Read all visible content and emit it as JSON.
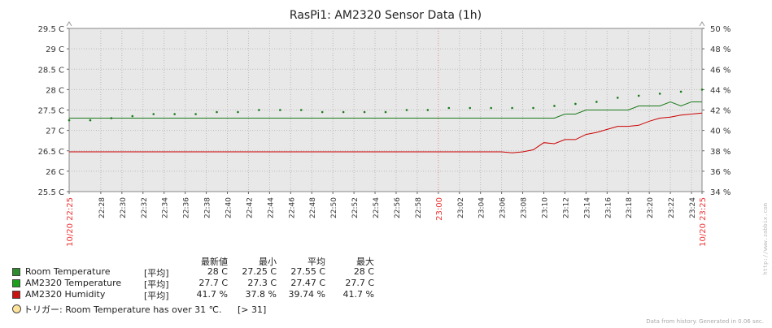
{
  "chart_data": {
    "type": "line",
    "title": "RasPi1: AM2320 Sensor Data (1h)",
    "left_axis": {
      "ylim": [
        25.5,
        29.5
      ],
      "ticks": [
        "25.5 C",
        "26 C",
        "26.5 C",
        "27 C",
        "27.5 C",
        "28 C",
        "28.5 C",
        "29 C",
        "29.5 C"
      ]
    },
    "right_axis": {
      "ylim": [
        34,
        50
      ],
      "ticks": [
        "34 %",
        "36 %",
        "38 %",
        "40 %",
        "42 %",
        "44 %",
        "46 %",
        "48 %",
        "50 %"
      ]
    },
    "x_labels": [
      "10/20 22:25",
      "22:28",
      "22:30",
      "22:32",
      "22:34",
      "22:36",
      "22:38",
      "22:40",
      "22:42",
      "22:44",
      "22:46",
      "22:48",
      "22:50",
      "22:52",
      "22:54",
      "22:56",
      "22:58",
      "23:00",
      "23:02",
      "23:04",
      "23:06",
      "23:08",
      "23:10",
      "23:12",
      "23:14",
      "23:16",
      "23:18",
      "23:20",
      "23:22",
      "23:24",
      "10/20 23:25"
    ],
    "grid": true,
    "series": [
      {
        "name": "Room Temperature",
        "color": "#1a7a1a",
        "style": "dotted",
        "axis": "left",
        "x": [
          "22:25",
          "22:27",
          "22:29",
          "22:31",
          "22:33",
          "22:35",
          "22:37",
          "22:39",
          "22:41",
          "22:43",
          "22:45",
          "22:47",
          "22:49",
          "22:51",
          "22:53",
          "22:55",
          "22:57",
          "22:59",
          "23:01",
          "23:03",
          "23:05",
          "23:07",
          "23:09",
          "23:11",
          "23:13",
          "23:15",
          "23:17",
          "23:19",
          "23:21",
          "23:23",
          "23:25"
        ],
        "values": [
          27.25,
          27.25,
          27.3,
          27.35,
          27.4,
          27.4,
          27.4,
          27.45,
          27.45,
          27.5,
          27.5,
          27.5,
          27.45,
          27.45,
          27.45,
          27.45,
          27.5,
          27.5,
          27.55,
          27.55,
          27.55,
          27.55,
          27.55,
          27.6,
          27.65,
          27.7,
          27.8,
          27.85,
          27.9,
          27.95,
          28.0
        ]
      },
      {
        "name": "AM2320 Temperature",
        "color": "#1a7a1a",
        "style": "line",
        "axis": "left",
        "x": [
          "22:25",
          "23:11",
          "23:12",
          "23:13",
          "23:14",
          "23:15",
          "23:16",
          "23:17",
          "23:18",
          "23:19",
          "23:20",
          "23:21",
          "23:22",
          "23:23",
          "23:24",
          "23:25"
        ],
        "values": [
          27.3,
          27.3,
          27.4,
          27.4,
          27.5,
          27.5,
          27.5,
          27.5,
          27.5,
          27.6,
          27.6,
          27.6,
          27.7,
          27.6,
          27.7,
          27.7
        ]
      },
      {
        "name": "AM2320 Humidity",
        "color": "#cc0000",
        "style": "line",
        "axis": "right",
        "x": [
          "22:25",
          "23:06",
          "23:07",
          "23:08",
          "23:09",
          "23:10",
          "23:11",
          "23:12",
          "23:13",
          "23:14",
          "23:15",
          "23:16",
          "23:17",
          "23:18",
          "23:19",
          "23:20",
          "23:21",
          "23:22",
          "23:23",
          "23:24",
          "23:25"
        ],
        "values": [
          37.9,
          37.9,
          37.8,
          37.9,
          38.1,
          38.8,
          38.7,
          39.1,
          39.1,
          39.6,
          39.8,
          40.1,
          40.4,
          40.4,
          40.5,
          40.9,
          41.2,
          41.3,
          41.5,
          41.6,
          41.7
        ]
      }
    ]
  },
  "legend": {
    "headers": [
      "最新値",
      "最小",
      "平均",
      "最大"
    ],
    "rows": [
      {
        "swatch": "#2e8b2e",
        "name": "Room Temperature",
        "func": "[平均]",
        "last": "28 C",
        "min": "27.25 C",
        "avg": "27.55 C",
        "max": "28 C"
      },
      {
        "swatch": "#1aa01a",
        "name": "AM2320 Temperature",
        "func": "[平均]",
        "last": "27.7 C",
        "min": "27.3 C",
        "avg": "27.47 C",
        "max": "27.7 C"
      },
      {
        "swatch": "#cc1111",
        "name": "AM2320 Humidity",
        "func": "[平均]",
        "last": "41.7 %",
        "min": "37.8 %",
        "avg": "39.74 %",
        "max": "41.7 %"
      }
    ],
    "trigger": {
      "text": "トリガー: Room Temperature has over 31 ℃.",
      "value": "[> 31]"
    }
  },
  "footer": "Data from history. Generated in 0.06 sec.",
  "watermark": "http://www.zabbix.com"
}
